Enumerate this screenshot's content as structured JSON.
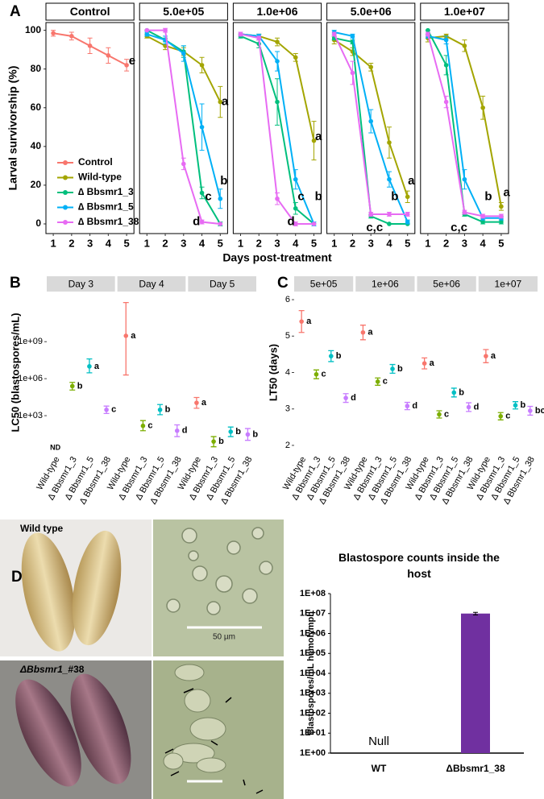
{
  "chart_data": [
    {
      "type": "line",
      "panel_label": "A",
      "ylabel": "Larval survivorship (%)",
      "xlabel": "Days post-treatment",
      "x": [
        1,
        2,
        3,
        4,
        5
      ],
      "xlim": [
        0.6,
        5.4
      ],
      "xticks": [
        1,
        2,
        3,
        4,
        5
      ],
      "ylim": [
        -5,
        104
      ],
      "yticks": [
        0,
        20,
        40,
        60,
        80,
        100
      ],
      "legend_position": "inside-bottom",
      "series": [
        {
          "name": "Control",
          "color": "#f8766d"
        },
        {
          "name": "Wild-type",
          "color": "#a3a500"
        },
        {
          "name": "∆ Bbsmr1_3",
          "color": "#00bf7d"
        },
        {
          "name": "∆ Bbsmr1_5",
          "color": "#00b0f6"
        },
        {
          "name": "∆ Bbsmr1_38",
          "color": "#e76bf3"
        }
      ],
      "facets": [
        {
          "title": "Control",
          "series": [
            {
              "values": [
                98.5,
                97,
                92,
                87,
                82
              ],
              "errors": [
                1.5,
                2,
                4,
                4,
                3
              ]
            },
            null,
            null,
            null,
            null
          ],
          "letters": [
            {
              "text": "e",
              "x": 5.3,
              "y": 84
            }
          ]
        },
        {
          "title": "5.0e+05",
          "series": [
            null,
            {
              "values": [
                97,
                92,
                89,
                82,
                63
              ],
              "errors": [
                1,
                2,
                2,
                4,
                8
              ]
            },
            {
              "values": [
                100,
                95,
                89,
                16,
                0
              ],
              "errors": [
                0,
                1,
                3,
                3,
                1
              ]
            },
            {
              "values": [
                98,
                95,
                88,
                50,
                13
              ],
              "errors": [
                1,
                2,
                4,
                12,
                5
              ]
            },
            {
              "values": [
                100,
                100,
                31,
                1,
                0
              ],
              "errors": [
                0,
                1,
                3,
                1,
                0
              ]
            }
          ],
          "letters": [
            {
              "text": "a",
              "x": 5.25,
              "y": 63
            },
            {
              "text": "b",
              "x": 5.2,
              "y": 22
            },
            {
              "text": "c",
              "x": 4.35,
              "y": 14
            },
            {
              "text": "d",
              "x": 3.7,
              "y": 1
            }
          ]
        },
        {
          "title": "1.0e+06",
          "series": [
            null,
            {
              "values": [
                98,
                97,
                94,
                86,
                43
              ],
              "errors": [
                1,
                1,
                2,
                2,
                10
              ]
            },
            {
              "values": [
                97,
                93,
                63,
                8,
                0
              ],
              "errors": [
                1,
                2,
                12,
                3,
                0
              ]
            },
            {
              "values": [
                98,
                97,
                84,
                23,
                0
              ],
              "errors": [
                1,
                1,
                5,
                5,
                1
              ]
            },
            {
              "values": [
                98,
                96,
                13,
                0,
                0
              ],
              "errors": [
                1,
                1,
                3,
                1,
                0
              ]
            }
          ],
          "letters": [
            {
              "text": "a",
              "x": 5.25,
              "y": 45
            },
            {
              "text": "b",
              "x": 5.25,
              "y": 14
            },
            {
              "text": "c",
              "x": 4.3,
              "y": 14
            },
            {
              "text": "d",
              "x": 3.75,
              "y": 1
            }
          ]
        },
        {
          "title": "5.0e+06",
          "series": [
            null,
            {
              "values": [
                95,
                89,
                81,
                42,
                14
              ],
              "errors": [
                2,
                2,
                2,
                8,
                3
              ]
            },
            {
              "values": [
                96,
                94,
                4,
                0,
                0
              ],
              "errors": [
                1,
                1,
                1,
                0,
                0
              ]
            },
            {
              "values": [
                99,
                97,
                53,
                23,
                1
              ],
              "errors": [
                1,
                1,
                6,
                4,
                1
              ]
            },
            {
              "values": [
                98,
                78,
                5,
                5,
                5
              ],
              "errors": [
                1,
                6,
                1,
                1,
                1
              ]
            }
          ],
          "letters": [
            {
              "text": "a",
              "x": 5.2,
              "y": 22
            },
            {
              "text": "b",
              "x": 4.3,
              "y": 14
            },
            {
              "text": "c,c",
              "x": 3.2,
              "y": -2
            }
          ]
        },
        {
          "title": "1.0e+07",
          "series": [
            null,
            {
              "values": [
                96,
                97,
                92,
                60,
                9
              ],
              "errors": [
                2,
                1,
                3,
                6,
                2
              ]
            },
            {
              "values": [
                100,
                82,
                5,
                1,
                1
              ],
              "errors": [
                0,
                5,
                1,
                1,
                1
              ]
            },
            {
              "values": [
                97,
                95,
                23,
                3,
                3
              ],
              "errors": [
                1,
                2,
                5,
                1,
                1
              ]
            },
            {
              "values": [
                98,
                63,
                6,
                4,
                4
              ],
              "errors": [
                1,
                3,
                1,
                1,
                1
              ]
            }
          ],
          "letters": [
            {
              "text": "a",
              "x": 5.3,
              "y": 16
            },
            {
              "text": "b",
              "x": 4.3,
              "y": 14
            },
            {
              "text": "c,c",
              "x": 2.7,
              "y": -2
            }
          ]
        }
      ]
    },
    {
      "type": "dot",
      "panel_label": "B",
      "ylabel": "LC50 (blastospores/mL)",
      "log_y": true,
      "ylim": [
        1,
        10000000000000
      ],
      "yticks": [
        {
          "value": 1000,
          "label": "1e+03"
        },
        {
          "value": 1000000,
          "label": "1e+06"
        },
        {
          "value": 1000000000,
          "label": "1e+09"
        }
      ],
      "categories": [
        "Wild-type",
        "∆ Bbsmr1_3",
        "∆ Bbsmr1_5",
        "∆ Bbsmr1_38"
      ],
      "colors": [
        "#f8766d",
        "#7cae00",
        "#00bfc4",
        "#c77cff"
      ],
      "facets": [
        {
          "title": "Day 3",
          "values": [
            null,
            250000,
            10000000,
            3000
          ],
          "lower": [
            null,
            120000,
            3000000,
            1500
          ],
          "upper": [
            null,
            500000,
            40000000,
            6000
          ],
          "letters": [
            "ND",
            "b",
            "a",
            "c"
          ]
        },
        {
          "title": "Day 4",
          "values": [
            3000000000,
            150,
            3000,
            60
          ],
          "lower": [
            2000000,
            60,
            1200,
            20
          ],
          "upper": [
            1500000000000,
            400,
            8000,
            180
          ],
          "letters": [
            "a",
            "c",
            "b",
            "d"
          ]
        },
        {
          "title": "Day 5",
          "values": [
            11000,
            8,
            50,
            30
          ],
          "lower": [
            4000,
            3,
            20,
            10
          ],
          "upper": [
            30000,
            20,
            120,
            90
          ],
          "letters": [
            "a",
            "b",
            "b",
            "b"
          ]
        }
      ]
    },
    {
      "type": "dot",
      "panel_label": "C",
      "ylabel": "LT50 (days)",
      "log_y": false,
      "ylim": [
        1.8,
        6.2
      ],
      "yticks": [
        2,
        3,
        4,
        5,
        6
      ],
      "categories": [
        "Wild-type",
        "∆ Bbsmr1_3",
        "∆ Bbsmr1_5",
        "∆ Bbsmr1_38"
      ],
      "colors": [
        "#f8766d",
        "#7cae00",
        "#00bfc4",
        "#c77cff"
      ],
      "facets": [
        {
          "title": "5e+05",
          "values": [
            5.4,
            3.95,
            4.45,
            3.3
          ],
          "lower": [
            5.1,
            3.83,
            4.3,
            3.18
          ],
          "upper": [
            5.7,
            4.07,
            4.6,
            3.42
          ],
          "letters": [
            "a",
            "c",
            "b",
            "d"
          ]
        },
        {
          "title": "1e+06",
          "values": [
            5.1,
            3.75,
            4.1,
            3.08
          ],
          "lower": [
            4.9,
            3.65,
            3.98,
            2.98
          ],
          "upper": [
            5.3,
            3.85,
            4.22,
            3.18
          ],
          "letters": [
            "a",
            "c",
            "b",
            "d"
          ]
        },
        {
          "title": "5e+06",
          "values": [
            4.25,
            2.85,
            3.45,
            3.05
          ],
          "lower": [
            4.1,
            2.75,
            3.33,
            2.93
          ],
          "upper": [
            4.4,
            2.95,
            3.57,
            3.17
          ],
          "letters": [
            "a",
            "c",
            "b",
            "d"
          ]
        },
        {
          "title": "1e+07",
          "values": [
            4.45,
            2.8,
            3.1,
            2.95
          ],
          "lower": [
            4.27,
            2.7,
            3.0,
            2.83
          ],
          "upper": [
            4.63,
            2.9,
            3.2,
            3.07
          ],
          "letters": [
            "a",
            "c",
            "b",
            "bc"
          ]
        }
      ]
    },
    {
      "type": "bar",
      "title": "Blastospore counts inside the host",
      "ylabel": "Blastospores/mL hemolymph",
      "log_y": true,
      "ylim": [
        1,
        100000000
      ],
      "yticks": [
        {
          "value": 1,
          "label": "1E+00"
        },
        {
          "value": 10,
          "label": "1E+01"
        },
        {
          "value": 100,
          "label": "1E+02"
        },
        {
          "value": 1000,
          "label": "1E+03"
        },
        {
          "value": 10000,
          "label": "1E+04"
        },
        {
          "value": 100000,
          "label": "1E+05"
        },
        {
          "value": 1000000,
          "label": "1E+06"
        },
        {
          "value": 10000000,
          "label": "1E+07"
        },
        {
          "value": 100000000,
          "label": "1E+08"
        }
      ],
      "categories": [
        "WT",
        "ΔBbsmr1_38"
      ],
      "values": [
        null,
        10000000
      ],
      "errors": [
        null,
        1500000
      ],
      "value_labels": [
        "Null",
        null
      ],
      "color": "#7030a0"
    }
  ],
  "photos": {
    "panel_label": "D",
    "top_label": "Wild type",
    "bottom_label_italic": "ΔBbsmr1_",
    "bottom_label_rest": "#38",
    "scale_label": "50 µm"
  }
}
